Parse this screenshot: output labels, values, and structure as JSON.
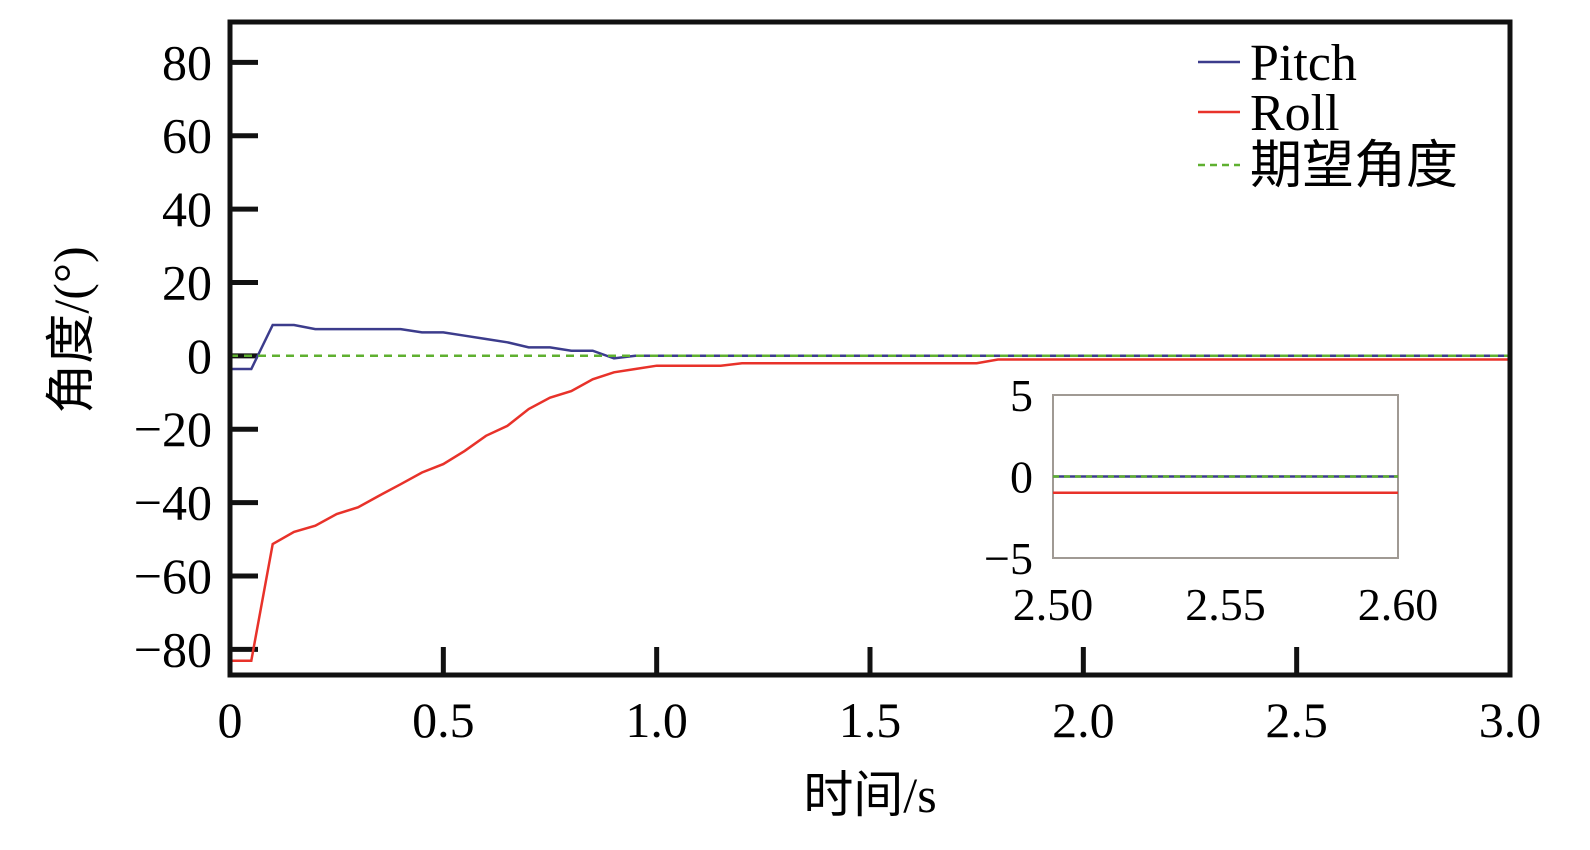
{
  "chart_data": {
    "type": "line",
    "title": "",
    "xlabel": "时间/s",
    "ylabel": "角度/(°)",
    "xlim": [
      0,
      3.0
    ],
    "ylim": [
      -87,
      91
    ],
    "xticks": [
      0,
      0.5,
      1.0,
      1.5,
      2.0,
      2.5,
      3.0
    ],
    "xtick_labels": [
      "0",
      "0.5",
      "1.0",
      "1.5",
      "2.0",
      "2.5",
      "3.0"
    ],
    "yticks": [
      80,
      60,
      40,
      20,
      0,
      -20,
      -40,
      -60,
      -80
    ],
    "ytick_labels": [
      "80",
      "60",
      "40",
      "20",
      "0",
      "−20",
      "−40",
      "−60",
      "−80"
    ],
    "grid": false,
    "legend_position": "top-right",
    "series": [
      {
        "name": "Pitch",
        "color": "#3c3c8c",
        "dash": "solid",
        "x": [
          0,
          0.05,
          0.1,
          0.15,
          0.2,
          0.4,
          0.45,
          0.5,
          0.55,
          0.6,
          0.65,
          0.7,
          0.75,
          0.8,
          0.85,
          0.9,
          0.95,
          3.0
        ],
        "y": [
          -3.6,
          -3.6,
          8.4,
          8.4,
          7.3,
          7.3,
          6.4,
          6.4,
          5.5,
          4.6,
          3.7,
          2.3,
          2.3,
          1.4,
          1.4,
          -0.7,
          0,
          0
        ]
      },
      {
        "name": "Roll",
        "color": "#e8322a",
        "dash": "solid",
        "x": [
          0,
          0.05,
          0.1,
          0.15,
          0.2,
          0.25,
          0.3,
          0.35,
          0.4,
          0.45,
          0.5,
          0.55,
          0.6,
          0.65,
          0.7,
          0.75,
          0.8,
          0.85,
          0.9,
          0.95,
          1.0,
          1.15,
          1.2,
          1.75,
          1.8,
          3.0
        ],
        "y": [
          -83.1,
          -83.1,
          -51.3,
          -48,
          -46.3,
          -43.1,
          -41.3,
          -38.1,
          -35,
          -31.8,
          -29.5,
          -25.9,
          -21.8,
          -19.1,
          -14.5,
          -11.4,
          -9.6,
          -6.4,
          -4.5,
          -3.6,
          -2.7,
          -2.7,
          -2,
          -2,
          -1,
          -1
        ]
      },
      {
        "name": "期望角度",
        "color": "#5fb030",
        "dash": "dashed",
        "x": [
          0,
          3.0
        ],
        "y": [
          0,
          0
        ]
      }
    ],
    "inset": {
      "xlim": [
        2.5,
        2.6
      ],
      "ylim": [
        -5,
        5
      ],
      "xticks": [
        2.5,
        2.55,
        2.6
      ],
      "xtick_labels": [
        "2.50",
        "2.55",
        "2.60"
      ],
      "yticks": [
        5,
        0,
        -5
      ],
      "ytick_labels": [
        "5",
        "0",
        "−5"
      ],
      "series": [
        {
          "name": "Roll",
          "color": "#e8322a",
          "dash": "solid",
          "x": [
            2.5,
            2.6
          ],
          "y": [
            -1,
            -1
          ]
        },
        {
          "name": "Pitch",
          "color": "#3c3c8c",
          "dash": "solid",
          "x": [
            2.5,
            2.6
          ],
          "y": [
            0,
            0
          ]
        },
        {
          "name": "期望角度",
          "color": "#5fb030",
          "dash": "dashed",
          "x": [
            2.5,
            2.6
          ],
          "y": [
            0,
            0
          ]
        }
      ]
    }
  }
}
